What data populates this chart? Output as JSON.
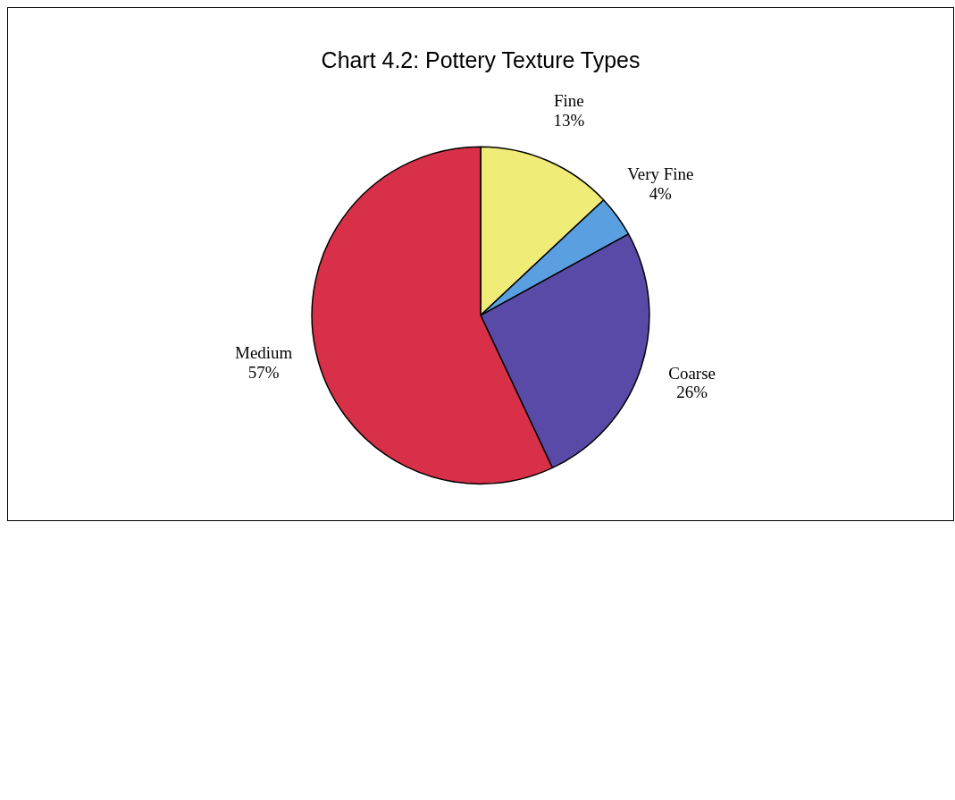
{
  "chart_data": {
    "type": "pie",
    "title": "Chart 4.2: Pottery Texture Types",
    "categories": [
      "Fine",
      "Very Fine",
      "Coarse",
      "Medium"
    ],
    "values": [
      13,
      4,
      26,
      57
    ],
    "value_labels": [
      "13%",
      "4%",
      "26%",
      "57%"
    ],
    "colors": [
      "#f0ec78",
      "#5aa0e0",
      "#5a4aa8",
      "#d83048"
    ],
    "legend": false
  }
}
